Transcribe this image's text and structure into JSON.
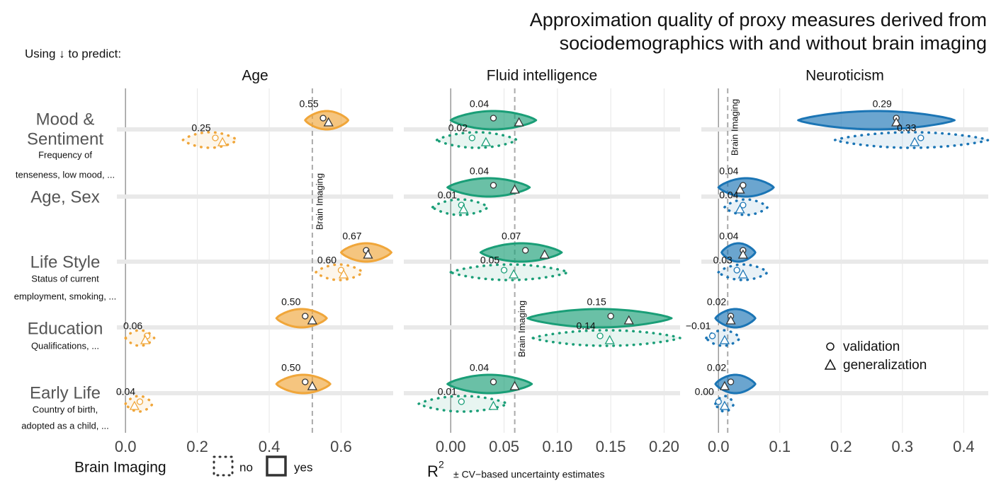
{
  "figure": {
    "title": [
      "Approximation quality of proxy measures derived from",
      "sociodemographics with and without brain imaging"
    ],
    "subtitle": "Using ↓ to predict:",
    "rows": [
      {
        "name": [
          "Mood &",
          "Sentiment"
        ],
        "description": [
          "Frequency of",
          "tenseness, low mood, ..."
        ]
      },
      {
        "name": [
          "Age, Sex"
        ],
        "description": []
      },
      {
        "name": [
          "Life Style"
        ],
        "description": [
          "Status of current",
          "employment, smoking, ..."
        ]
      },
      {
        "name": [
          "Education"
        ],
        "description": [
          "Qualifications, ..."
        ]
      },
      {
        "name": [
          "Early Life"
        ],
        "description": [
          "Country of birth,",
          "adopted as a child, ..."
        ]
      }
    ],
    "legend_title": "Brain Imaging",
    "marker_legend": [
      "validation",
      "generalization"
    ],
    "x_label": {
      "base": "R",
      "sup": "2",
      "rest": "± CV−based uncertainty estimates"
    }
  },
  "chart_data": [
    {
      "type": "violin",
      "title": "Age",
      "color": "#f0a63a",
      "xlim": [
        -0.024,
        0.745
      ],
      "xticks": [
        {
          "value": 0,
          "label": "0.0"
        },
        0.2,
        0.4,
        0.6
      ],
      "reference": 0.52,
      "reference_label": "Brain Imaging",
      "series": [
        {
          "name": "yes",
          "values": [
            0.55,
            null,
            0.67,
            0.5,
            0.5
          ],
          "value_labels": [
            "0.55",
            null,
            "0.67",
            "0.50",
            "0.50"
          ],
          "generalization": [
            0.565,
            null,
            0.675,
            0.52,
            0.52
          ],
          "ranges": [
            [
              0.5,
              0.62
            ],
            null,
            [
              0.6,
              0.74
            ],
            [
              0.42,
              0.56
            ],
            [
              0.42,
              0.57
            ]
          ]
        },
        {
          "name": "no",
          "values": [
            0.25,
            null,
            0.6,
            0.06,
            0.04
          ],
          "value_labels": [
            "0.25",
            null,
            "0.60",
            "0.06",
            "0.04"
          ],
          "generalization": [
            0.27,
            null,
            0.607,
            0.055,
            0.025
          ],
          "ranges": [
            [
              0.16,
              0.31
            ],
            null,
            [
              0.53,
              0.66
            ],
            [
              0.0,
              0.08
            ],
            [
              0.0,
              0.075
            ]
          ]
        }
      ]
    },
    {
      "type": "violin",
      "title": "Fluid intelligence",
      "color": "#1a9e77",
      "xlim": [
        -0.044,
        0.215
      ],
      "xticks": [
        {
          "value": 0,
          "label": "0.00"
        },
        0.05,
        {
          "value": 0.1,
          "label": "0.10"
        },
        0.15,
        {
          "value": 0.2,
          "label": "0.20"
        }
      ],
      "reference": 0.06,
      "reference_label": "Brain Imaging",
      "series": [
        {
          "name": "yes",
          "values": [
            0.04,
            0.04,
            0.07,
            0.15,
            0.04
          ],
          "value_labels": [
            "0.04",
            "0.04",
            "0.07",
            "0.15",
            "0.04"
          ],
          "generalization": [
            0.064,
            0.06,
            0.088,
            0.167,
            0.06
          ],
          "ranges": [
            [
              0.0,
              0.08
            ],
            [
              -0.003,
              0.074
            ],
            [
              0.028,
              0.104
            ],
            [
              0.072,
              0.207
            ],
            [
              -0.003,
              0.076
            ]
          ]
        },
        {
          "name": "no",
          "values": [
            0.02,
            0.01,
            0.05,
            0.14,
            0.01
          ],
          "value_labels": [
            "0.02",
            "0.01",
            "0.05",
            "0.14",
            "0.01"
          ],
          "generalization": [
            0.033,
            0.012,
            0.059,
            0.149,
            0.04
          ],
          "ranges": [
            [
              -0.013,
              0.062
            ],
            [
              -0.017,
              0.035
            ],
            [
              0.0,
              0.11
            ],
            [
              0.077,
              0.215
            ],
            [
              -0.03,
              0.053
            ]
          ]
        }
      ]
    },
    {
      "type": "violin",
      "title": "Neuroticism",
      "color": "#1b75b5",
      "xlim": [
        -0.028,
        0.44
      ],
      "xticks": [
        {
          "value": 0,
          "label": "0.0"
        },
        0.1,
        0.2,
        0.3,
        0.4
      ],
      "reference": 0.015,
      "reference_label": "Brain Imaging",
      "series": [
        {
          "name": "yes",
          "values": [
            0.29,
            0.04,
            0.04,
            0.02,
            0.02
          ],
          "value_labels": [
            "0.29",
            "0.04",
            "0.04",
            "0.02",
            "0.02"
          ],
          "generalization": [
            0.29,
            0.035,
            0.04,
            0.02,
            0.01
          ],
          "ranges": [
            [
              0.13,
              0.385
            ],
            [
              0.0,
              0.09
            ],
            [
              0.005,
              0.06
            ],
            [
              -0.005,
              0.06
            ],
            [
              -0.005,
              0.06
            ]
          ]
        },
        {
          "name": "no",
          "values": [
            0.33,
            0.04,
            0.03,
            -0.01,
            0.0
          ],
          "value_labels": [
            "0.33",
            "0.04",
            "0.03",
            "−0.01",
            "0.00"
          ],
          "generalization": [
            0.32,
            0.035,
            0.04,
            0.01,
            0.01
          ],
          "ranges": [
            [
              0.19,
              0.44
            ],
            [
              0.01,
              0.08
            ],
            [
              0.0,
              0.08
            ],
            [
              -0.02,
              0.035
            ],
            [
              -0.005,
              0.025
            ]
          ]
        }
      ]
    }
  ]
}
